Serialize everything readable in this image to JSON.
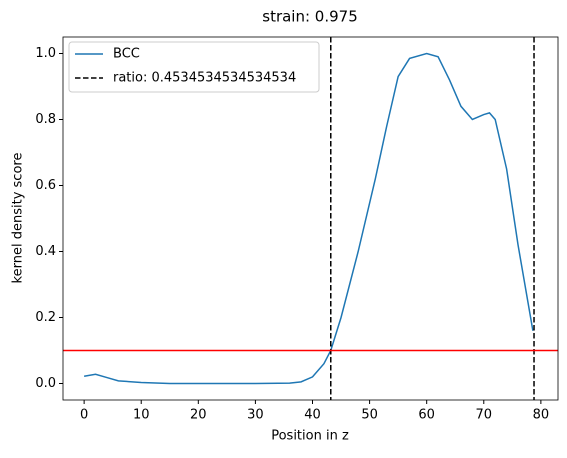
{
  "chart_data": {
    "type": "line",
    "title": "strain: 0.975",
    "xlabel": "Position in z",
    "ylabel": "kernel density score",
    "series": [
      {
        "name": "BCC",
        "color": "#1f77b4",
        "x": [
          0,
          2,
          4,
          6,
          10,
          15,
          20,
          30,
          36,
          38,
          40,
          42,
          43.2,
          45,
          48,
          51,
          53,
          55,
          57,
          60,
          62,
          64,
          66,
          68,
          70,
          71,
          72,
          74,
          76,
          78,
          78.6
        ],
        "values": [
          0.022,
          0.028,
          0.018,
          0.008,
          0.003,
          0.0,
          0.0,
          0.0,
          0.001,
          0.005,
          0.02,
          0.06,
          0.1,
          0.2,
          0.4,
          0.62,
          0.78,
          0.93,
          0.985,
          1.0,
          0.99,
          0.92,
          0.84,
          0.8,
          0.815,
          0.82,
          0.8,
          0.65,
          0.42,
          0.22,
          0.16
        ]
      }
    ],
    "vlines": {
      "name": "ratio: 0.4534534534534534",
      "color": "#000000",
      "values": [
        43.2,
        78.8
      ]
    },
    "hline": {
      "value": 0.1,
      "color": "#ff0000"
    },
    "xlim": [
      -3.7,
      83
    ],
    "ylim": [
      -0.05,
      1.05
    ],
    "xticks": [
      0,
      10,
      20,
      30,
      40,
      50,
      60,
      70,
      80
    ],
    "yticks": [
      {
        "value": 0,
        "label": "0.0"
      },
      {
        "value": 0.2,
        "label": "0.2"
      },
      {
        "value": 0.4,
        "label": "0.4"
      },
      {
        "value": 0.6,
        "label": "0.6"
      },
      {
        "value": 0.8,
        "label": "0.8"
      },
      {
        "value": 1,
        "label": "1.0"
      }
    ],
    "legend": "upper left"
  }
}
